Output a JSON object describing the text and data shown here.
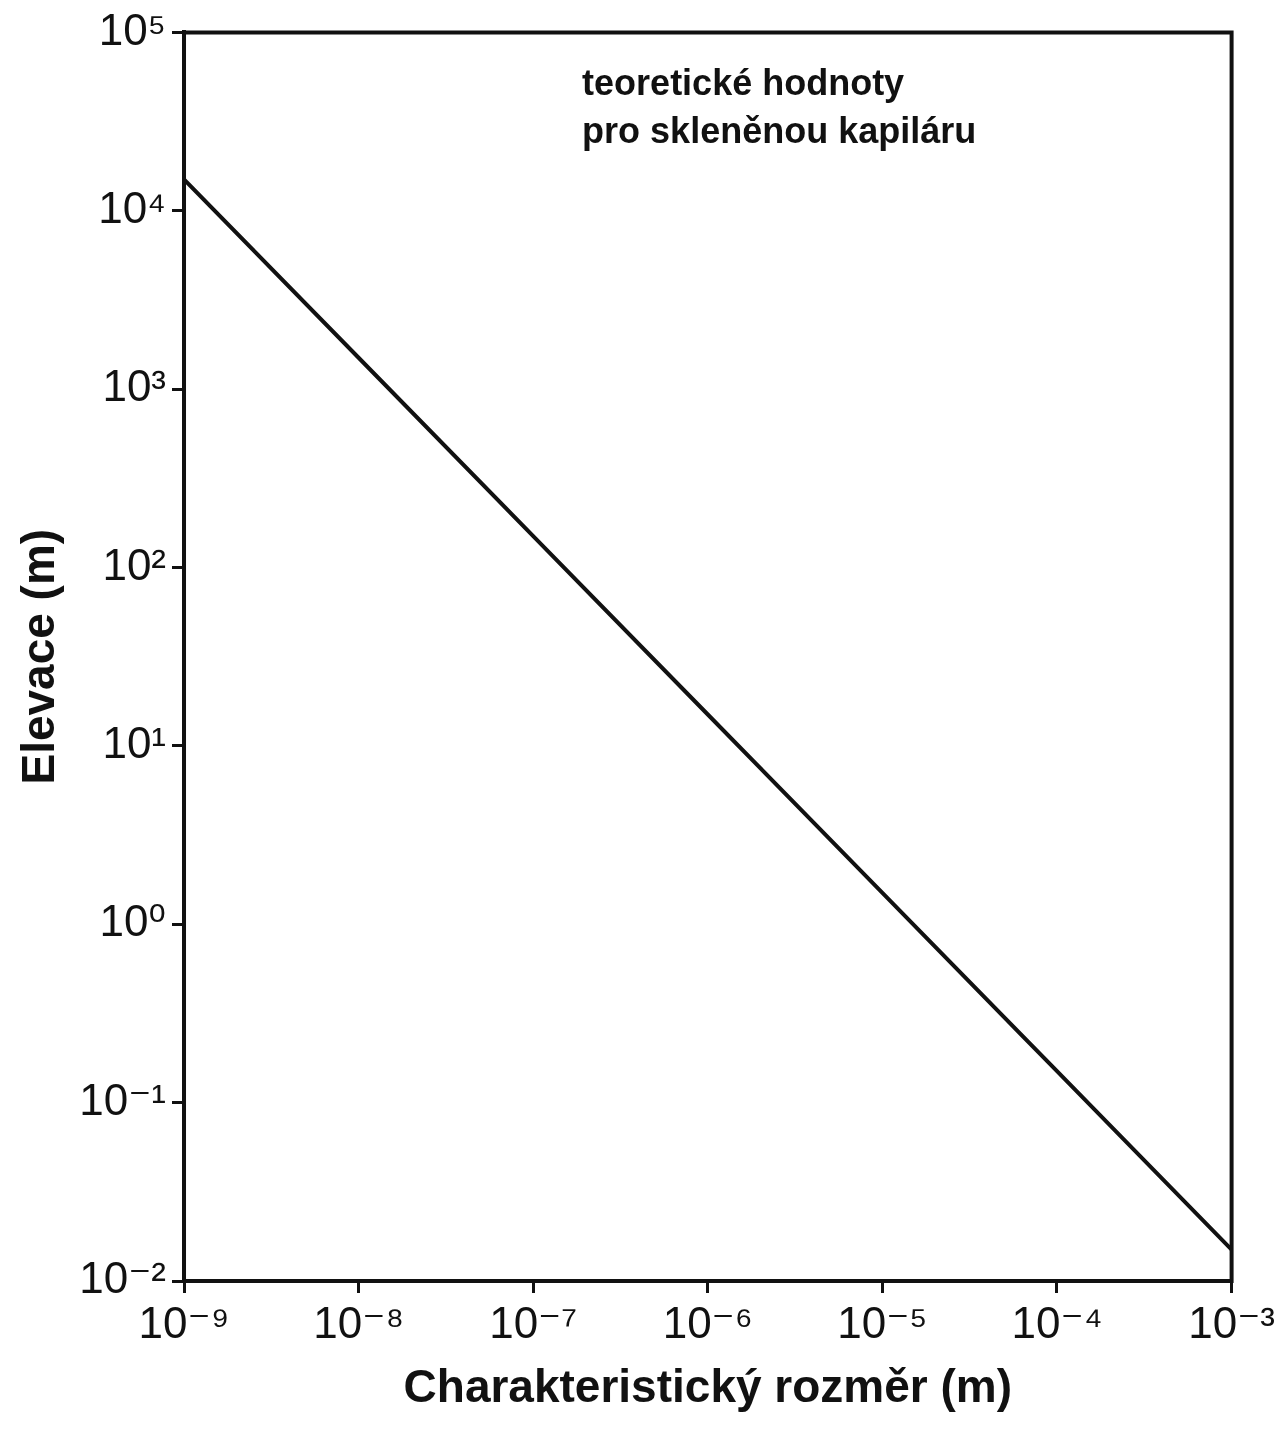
{
  "chart_data": {
    "type": "line",
    "xlabel": "Charakteristický rozměr (m)",
    "ylabel": "Elevace (m)",
    "annotations": [
      "teoretické hodnoty\npro skleněnou kapiláru"
    ],
    "x": [
      1e-09,
      1e-08,
      1e-07,
      1e-06,
      1e-05,
      0.0001,
      0.001
    ],
    "series": [
      {
        "color": "#111111",
        "values": [
          15000,
          1500,
          150,
          15,
          1.5,
          0.15,
          0.015
        ]
      }
    ],
    "log": "xy",
    "grid": false,
    "legend": false,
    "marker": "none",
    "line_style": "solid",
    "xlim": [
      1e-09,
      0.001
    ],
    "ylim": [
      0.01,
      100000
    ],
    "xticks": [
      {
        "value": 1e-09,
        "label": "10⁻⁹"
      },
      {
        "value": 1e-08,
        "label": "10⁻⁸"
      },
      {
        "value": 1e-07,
        "label": "10⁻⁷"
      },
      {
        "value": 1e-06,
        "label": "10⁻⁶"
      },
      {
        "value": 1e-05,
        "label": "10⁻⁵"
      },
      {
        "value": 0.0001,
        "label": "10⁻⁴"
      },
      {
        "value": 0.001,
        "label": "10⁻³"
      }
    ],
    "yticks": [
      {
        "value": 0.01,
        "label": "10⁻²"
      },
      {
        "value": 0.1,
        "label": "10⁻¹"
      },
      {
        "value": 1,
        "label": "10⁰"
      },
      {
        "value": 10,
        "label": "10¹"
      },
      {
        "value": 100,
        "label": "10²"
      },
      {
        "value": 1000,
        "label": "10³"
      },
      {
        "value": 10000,
        "label": "10⁴"
      },
      {
        "value": 100000,
        "label": "10⁵"
      }
    ]
  }
}
